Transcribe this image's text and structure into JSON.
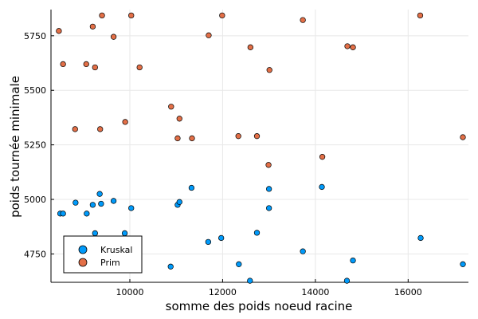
{
  "colors": {
    "kruskal": "#009AFA",
    "prim": "#E36F47",
    "grid": "#e8e8e8",
    "axis": "#000000"
  },
  "chart_data": {
    "type": "scatter",
    "title": "",
    "xlabel": "somme des poids noeud racine",
    "ylabel": "poids tournée minimale",
    "xlim": [
      8300,
      17300
    ],
    "ylim": [
      4620,
      5870
    ],
    "x_ticks": [
      10000,
      12000,
      14000,
      16000
    ],
    "x_tick_labels": [
      "10000",
      "12000",
      "14000",
      "16000"
    ],
    "y_ticks": [
      4750,
      5000,
      5250,
      5500,
      5750
    ],
    "y_tick_labels": [
      "4750",
      "5000",
      "5250",
      "5500",
      "5750"
    ],
    "grid": true,
    "legend_position": "bottom-left",
    "series": [
      {
        "name": "Kruskal",
        "color_key": "kruskal",
        "points": [
          [
            8500,
            4935
          ],
          [
            8560,
            4935
          ],
          [
            8830,
            4985
          ],
          [
            9070,
            4935
          ],
          [
            9200,
            4975
          ],
          [
            9250,
            4845
          ],
          [
            9350,
            5025
          ],
          [
            9380,
            4980
          ],
          [
            9650,
            4993
          ],
          [
            9890,
            4845
          ],
          [
            10030,
            4960
          ],
          [
            10880,
            4692
          ],
          [
            11030,
            4975
          ],
          [
            11070,
            4988
          ],
          [
            11330,
            5053
          ],
          [
            11690,
            4805
          ],
          [
            11970,
            4823
          ],
          [
            12350,
            4703
          ],
          [
            12590,
            4627
          ],
          [
            12740,
            4847
          ],
          [
            13000,
            5048
          ],
          [
            13000,
            4960
          ],
          [
            13730,
            4762
          ],
          [
            14140,
            5057
          ],
          [
            14680,
            4627
          ],
          [
            14810,
            4720
          ],
          [
            16270,
            4823
          ],
          [
            17180,
            4703
          ]
        ]
      },
      {
        "name": "Prim",
        "color_key": "prim",
        "points": [
          [
            8470,
            5772
          ],
          [
            8560,
            5620
          ],
          [
            8820,
            5322
          ],
          [
            9060,
            5620
          ],
          [
            9200,
            5792
          ],
          [
            9250,
            5605
          ],
          [
            9360,
            5322
          ],
          [
            9400,
            5843
          ],
          [
            9650,
            5745
          ],
          [
            9900,
            5355
          ],
          [
            10030,
            5843
          ],
          [
            10210,
            5605
          ],
          [
            10890,
            5425
          ],
          [
            11030,
            5280
          ],
          [
            11070,
            5370
          ],
          [
            11340,
            5280
          ],
          [
            11700,
            5752
          ],
          [
            11990,
            5843
          ],
          [
            12340,
            5290
          ],
          [
            12600,
            5697
          ],
          [
            12740,
            5290
          ],
          [
            12990,
            5158
          ],
          [
            13010,
            5593
          ],
          [
            13730,
            5822
          ],
          [
            14150,
            5195
          ],
          [
            14690,
            5702
          ],
          [
            14810,
            5697
          ],
          [
            16260,
            5843
          ],
          [
            17180,
            5285
          ]
        ]
      }
    ]
  }
}
